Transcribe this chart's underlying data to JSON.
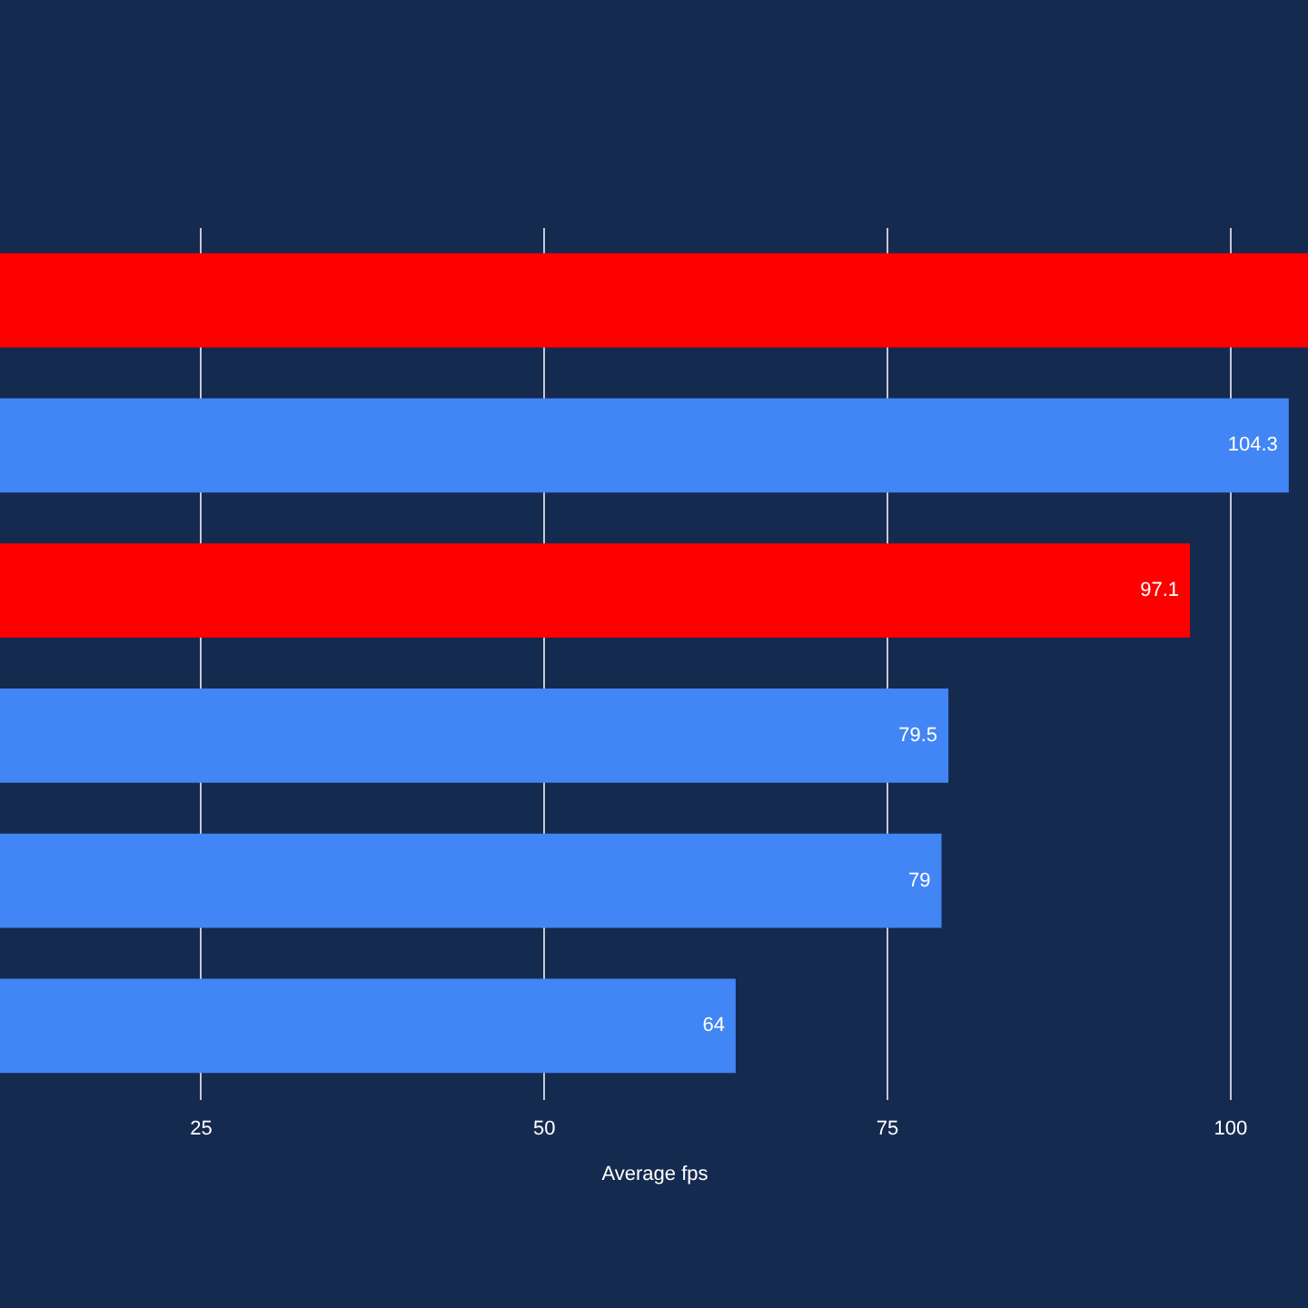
{
  "chart_data": {
    "type": "bar",
    "orientation": "horizontal",
    "xlabel": "Average fps",
    "categories": [
      null,
      null,
      null,
      null,
      null,
      null
    ],
    "values": [
      105.7,
      104.3,
      97.1,
      79.5,
      79,
      64
    ],
    "colors": [
      "#ff0000",
      "#4285f4",
      "#ff0000",
      "#4285f4",
      "#4285f4",
      "#4285f4"
    ],
    "value_labels": [
      null,
      "104.3",
      "97.1",
      "79.5",
      "79",
      "64"
    ],
    "xlim": [
      10.4,
      105.7
    ],
    "xticks": [
      25,
      50,
      75,
      100
    ],
    "grid": "x",
    "tick_labels": "x"
  }
}
